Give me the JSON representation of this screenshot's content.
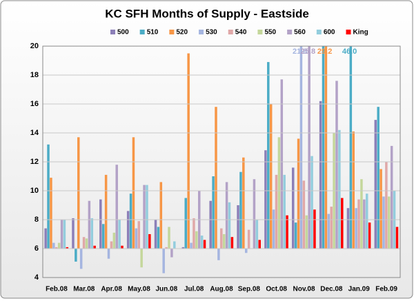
{
  "chart_data": {
    "type": "bar",
    "title": "KC SFH Months of Supply - Eastside",
    "categories": [
      "Feb.08",
      "Mar.08",
      "Apr.08",
      "May.08",
      "Jun.08",
      "Jul.08",
      "Aug.08",
      "Sep.08",
      "Oct.08",
      "Nov.08",
      "Dec.08",
      "Jan.09",
      "Feb.09"
    ],
    "ylim": [
      4,
      20
    ],
    "yticks": [
      4,
      6,
      8,
      10,
      12,
      14,
      16,
      18,
      20
    ],
    "grid": true,
    "bar_base": 6,
    "legend": "top",
    "series": [
      {
        "name": "500",
        "color": "#8c7fb8",
        "values": [
          7.4,
          8.1,
          9.4,
          8.6,
          8.0,
          6.1,
          9.3,
          9.0,
          12.8,
          11.6,
          16.2,
          8.8,
          14.9
        ]
      },
      {
        "name": "510",
        "color": "#4bacc6",
        "values": [
          13.2,
          5.1,
          7.7,
          9.8,
          7.5,
          9.5,
          11.0,
          11.3,
          18.9,
          7.8,
          20.0,
          46.0,
          15.8
        ],
        "value_labels": [
          null,
          null,
          null,
          null,
          null,
          null,
          null,
          null,
          null,
          null,
          null,
          "46.0",
          null
        ]
      },
      {
        "name": "520",
        "color": "#f79646",
        "values": [
          10.9,
          13.7,
          11.1,
          13.7,
          10.6,
          19.5,
          15.8,
          12.3,
          16.0,
          13.6,
          29.2,
          14.1,
          11.5
        ],
        "value_labels": [
          null,
          null,
          null,
          null,
          null,
          null,
          null,
          null,
          null,
          null,
          "29.2",
          null,
          null
        ]
      },
      {
        "name": "530",
        "color": "#a5b5e0",
        "values": [
          6.4,
          4.6,
          5.3,
          7.4,
          4.3,
          6.4,
          5.2,
          5.7,
          8.7,
          21.8,
          8.4,
          8.8,
          9.6
        ],
        "value_labels": [
          null,
          null,
          null,
          null,
          null,
          null,
          null,
          null,
          null,
          "21.8",
          null,
          null,
          null
        ]
      },
      {
        "name": "540",
        "color": "#e0a8a8",
        "values": [
          6.1,
          6.8,
          6.5,
          7.9,
          6.1,
          8.1,
          7.4,
          7.3,
          11.1,
          10.7,
          8.9,
          9.4,
          12.0
        ]
      },
      {
        "name": "550",
        "color": "#c4d79b",
        "values": [
          6.4,
          6.7,
          7.1,
          4.7,
          7.5,
          7.2,
          7.0,
          6.0,
          13.7,
          8.3,
          14.0,
          10.8,
          9.6
        ]
      },
      {
        "name": "560",
        "color": "#b3a2c7",
        "values": [
          8.0,
          9.3,
          11.8,
          10.4,
          5.4,
          10.0,
          10.6,
          10.8,
          17.7,
          25.8,
          17.6,
          9.4,
          13.1
        ],
        "value_labels": [
          null,
          null,
          null,
          null,
          null,
          null,
          null,
          null,
          null,
          "25.8",
          null,
          null,
          null
        ]
      },
      {
        "name": "600",
        "color": "#93cddd",
        "values": [
          8.0,
          8.1,
          8.0,
          10.4,
          6.5,
          6.9,
          9.2,
          8.0,
          11.1,
          12.4,
          14.2,
          9.8,
          10.0
        ]
      },
      {
        "name": "King",
        "color": "#ff0000",
        "values": [
          6.1,
          6.2,
          6.2,
          7.0,
          6.0,
          6.6,
          6.8,
          6.6,
          8.3,
          8.7,
          9.5,
          7.8,
          7.5
        ]
      }
    ]
  }
}
